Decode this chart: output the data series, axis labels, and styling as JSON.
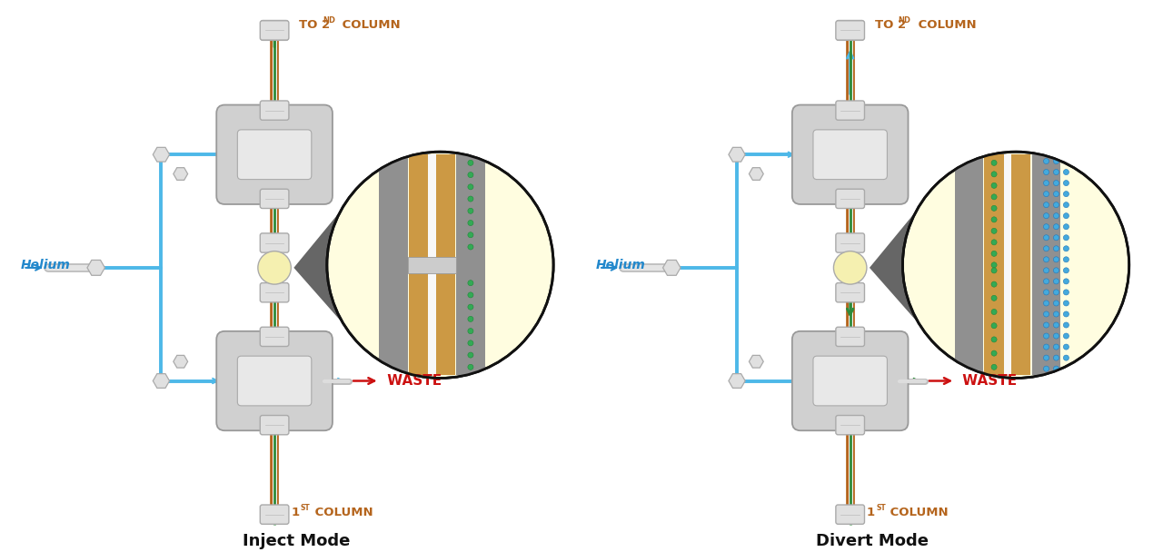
{
  "bg_color": "#ffffff",
  "title_inject": "Inject Mode",
  "title_divert": "Divert Mode",
  "col_color": "#b5651d",
  "green_line": "#2e8b3a",
  "blue_tube": "#4db8e8",
  "blue_dark": "#2288cc",
  "green_arrow": "#2e8b3a",
  "red_color": "#cc1111",
  "waste_text": "WASTE",
  "helium_text": "Helium",
  "body_bg": "#d0d0d0",
  "body_edge": "#999999",
  "body_inner": "#e8e8e8",
  "connector_bg": "#e0e0e0",
  "connector_edge": "#aaaaaa",
  "zoom_bg": "#fffde0",
  "zoom_edge": "#111111",
  "cone_color": "#555555",
  "dot_green": "#33aa55",
  "dot_green_outline": "#22883a",
  "dot_blue": "#44aadd",
  "dot_blue_outline": "#2277bb",
  "zoom_gray_wall": "#aaaaaa",
  "zoom_col_fill": "#cc9944",
  "zoom_white_ch": "#f8f8f8",
  "junction_fill": "#f5f0b0",
  "tube_gray": "#c8c8c8",
  "tube_gray2": "#e8e8e8",
  "black": "#111111"
}
